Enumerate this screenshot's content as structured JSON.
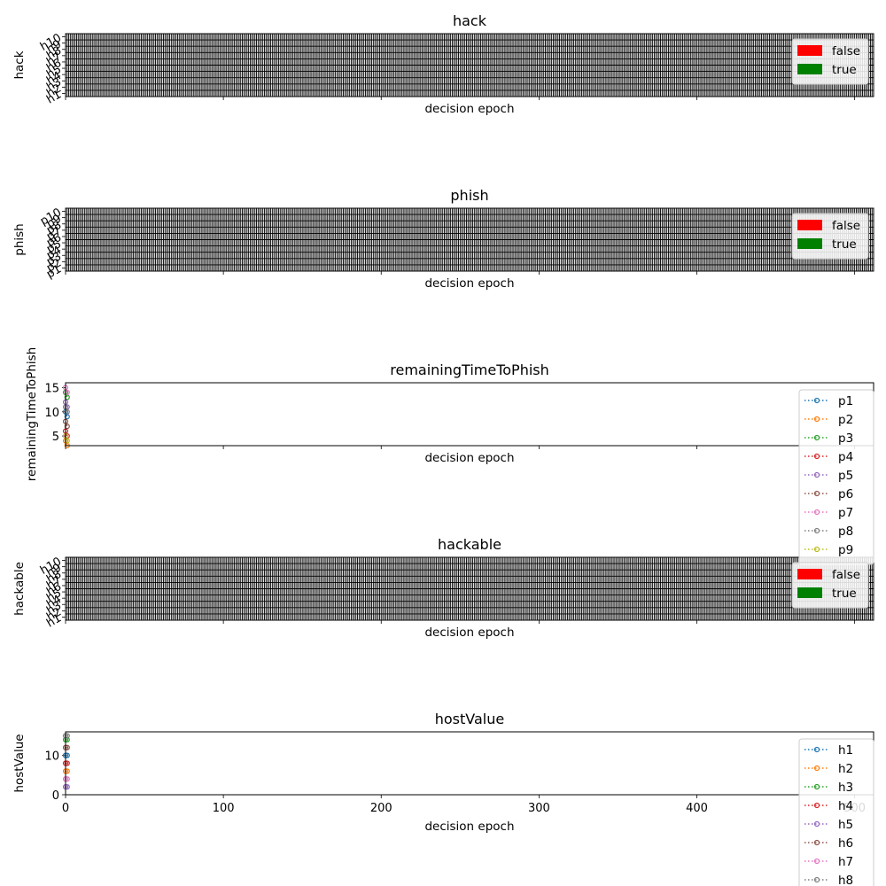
{
  "chart_data": [
    {
      "type": "heatmap",
      "title": "hack",
      "xlabel": "decision epoch",
      "ylabel": "hack",
      "xlim": [
        0,
        512
      ],
      "y_categories": [
        "h1",
        "h2",
        "h3",
        "h4",
        "h5",
        "h6",
        "h7",
        "h8",
        "h9",
        "h10"
      ],
      "x_ticks": [
        0,
        100,
        200,
        300,
        400,
        500
      ],
      "x_tick_labels_shown": false,
      "legend": {
        "position": "upper-right",
        "entries": [
          {
            "label": "false",
            "color": "#ff0000"
          },
          {
            "label": "true",
            "color": "#008000"
          }
        ]
      },
      "grid": true
    },
    {
      "type": "heatmap",
      "title": "phish",
      "xlabel": "decision epoch",
      "ylabel": "phish",
      "xlim": [
        0,
        512
      ],
      "y_categories": [
        "p1",
        "p2",
        "p3",
        "p4",
        "p5",
        "p6",
        "p7",
        "p8",
        "p9",
        "p10"
      ],
      "x_ticks": [
        0,
        100,
        200,
        300,
        400,
        500
      ],
      "x_tick_labels_shown": false,
      "legend": {
        "position": "upper-right",
        "entries": [
          {
            "label": "false",
            "color": "#ff0000"
          },
          {
            "label": "true",
            "color": "#008000"
          }
        ]
      },
      "grid": true
    },
    {
      "type": "line",
      "title": "remainingTimeToPhish",
      "xlabel": "decision epoch",
      "ylabel": "remainingTimeToPhish",
      "xlim": [
        0,
        512
      ],
      "ylim": [
        3,
        16
      ],
      "y_ticks": [
        5,
        10,
        15
      ],
      "x_ticks": [
        0,
        100,
        200,
        300,
        400,
        500
      ],
      "x_tick_labels_shown": false,
      "legend": {
        "position": "upper-right"
      },
      "series": [
        {
          "name": "p1",
          "color": "#1f77b4",
          "x": [
            0,
            1
          ],
          "y": [
            10,
            9
          ]
        },
        {
          "name": "p2",
          "color": "#ff7f0e",
          "x": [
            0,
            1
          ],
          "y": [
            4,
            3
          ]
        },
        {
          "name": "p3",
          "color": "#2ca02c",
          "x": [
            0,
            1
          ],
          "y": [
            14,
            13
          ]
        },
        {
          "name": "p4",
          "color": "#d62728",
          "x": [
            0,
            1
          ],
          "y": [
            6,
            5
          ]
        },
        {
          "name": "p5",
          "color": "#9467bd",
          "x": [
            0,
            1
          ],
          "y": [
            12,
            11
          ]
        },
        {
          "name": "p6",
          "color": "#8c564b",
          "x": [
            0,
            1
          ],
          "y": [
            8,
            7
          ]
        },
        {
          "name": "p7",
          "color": "#e377c2",
          "x": [
            0,
            1
          ],
          "y": [
            15,
            14
          ]
        },
        {
          "name": "p8",
          "color": "#7f7f7f",
          "x": [
            0,
            1
          ],
          "y": [
            11,
            10
          ]
        },
        {
          "name": "p9",
          "color": "#bcbd22",
          "x": [
            0,
            1
          ],
          "y": [
            5,
            4
          ]
        }
      ]
    },
    {
      "type": "heatmap",
      "title": "hackable",
      "xlabel": "decision epoch",
      "ylabel": "hackable",
      "xlim": [
        0,
        512
      ],
      "y_categories": [
        "h1",
        "h2",
        "h3",
        "h4",
        "h5",
        "h6",
        "h7",
        "h8",
        "h9",
        "h10"
      ],
      "x_ticks": [
        0,
        100,
        200,
        300,
        400,
        500
      ],
      "x_tick_labels_shown": false,
      "legend": {
        "position": "upper-right",
        "entries": [
          {
            "label": "false",
            "color": "#ff0000"
          },
          {
            "label": "true",
            "color": "#008000"
          }
        ]
      },
      "grid": true
    },
    {
      "type": "line",
      "title": "hostValue",
      "xlabel": "decision epoch",
      "ylabel": "hostValue",
      "xlim": [
        0,
        512
      ],
      "ylim": [
        0,
        16
      ],
      "y_ticks": [
        0,
        10
      ],
      "x_ticks": [
        0,
        100,
        200,
        300,
        400,
        500
      ],
      "x_tick_labels_shown": true,
      "x_tick_labels": [
        "0",
        "100",
        "200",
        "300",
        "400",
        "500"
      ],
      "legend": {
        "position": "upper-right"
      },
      "series": [
        {
          "name": "h1",
          "color": "#1f77b4",
          "x": [
            0,
            1
          ],
          "y": [
            10,
            10
          ]
        },
        {
          "name": "h2",
          "color": "#ff7f0e",
          "x": [
            0,
            1
          ],
          "y": [
            6,
            6
          ]
        },
        {
          "name": "h3",
          "color": "#2ca02c",
          "x": [
            0,
            1
          ],
          "y": [
            14,
            14
          ]
        },
        {
          "name": "h4",
          "color": "#d62728",
          "x": [
            0,
            1
          ],
          "y": [
            8,
            8
          ]
        },
        {
          "name": "h5",
          "color": "#9467bd",
          "x": [
            0,
            1
          ],
          "y": [
            2,
            2
          ]
        },
        {
          "name": "h6",
          "color": "#8c564b",
          "x": [
            0,
            1
          ],
          "y": [
            12,
            12
          ]
        },
        {
          "name": "h7",
          "color": "#e377c2",
          "x": [
            0,
            1
          ],
          "y": [
            4,
            4
          ]
        },
        {
          "name": "h8",
          "color": "#7f7f7f",
          "x": [
            0,
            1
          ],
          "y": [
            15,
            15
          ]
        }
      ]
    }
  ]
}
